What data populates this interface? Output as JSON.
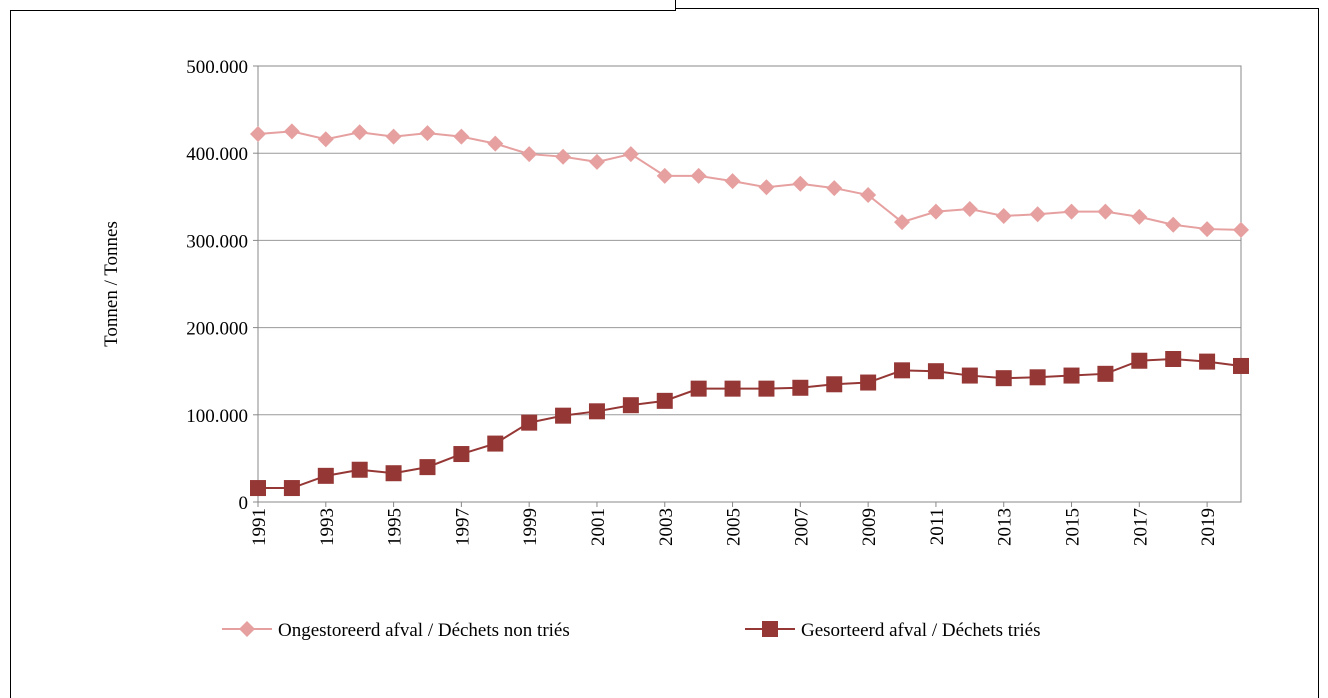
{
  "chart_data": {
    "type": "line",
    "y_label": "Tonnen / Tonnes",
    "x": [
      1991,
      1992,
      1993,
      1994,
      1995,
      1996,
      1997,
      1998,
      1999,
      2000,
      2001,
      2002,
      2003,
      2004,
      2005,
      2006,
      2007,
      2008,
      2009,
      2010,
      2011,
      2012,
      2013,
      2014,
      2015,
      2016,
      2017,
      2018,
      2019,
      2020
    ],
    "xlim": [
      1991,
      2020
    ],
    "xticks": [
      1991,
      1993,
      1995,
      1997,
      1999,
      2001,
      2003,
      2005,
      2007,
      2009,
      2011,
      2013,
      2015,
      2017,
      2019
    ],
    "ylim": [
      0,
      500000
    ],
    "yticks": [
      0,
      {
        "value": 100000,
        "label": "100.000"
      },
      {
        "value": 200000,
        "label": "200.000"
      },
      {
        "value": 300000,
        "label": "300.000"
      },
      {
        "value": 400000,
        "label": "400.000"
      },
      {
        "value": 500000,
        "label": "500.000"
      }
    ],
    "grid": true,
    "legend": "bottom",
    "series": [
      {
        "name": "Ongestoreerd afval / Déchets non triés",
        "color": "#e6a0a0",
        "marker": "diamond",
        "values": [
          422000,
          425000,
          416000,
          424000,
          419000,
          423000,
          419000,
          411000,
          399000,
          396000,
          390000,
          399000,
          374000,
          374000,
          368000,
          361000,
          365000,
          360000,
          352000,
          321000,
          333000,
          336000,
          328000,
          330000,
          333000,
          333000,
          327000,
          318000,
          313000,
          312000
        ]
      },
      {
        "name": "Gesorteerd afval / Déchets triés",
        "color": "#953735",
        "marker": "square",
        "values": [
          16000,
          16000,
          30000,
          37000,
          33000,
          40000,
          55000,
          67000,
          91000,
          99000,
          104000,
          111000,
          116000,
          130000,
          130000,
          130000,
          131000,
          135000,
          137000,
          151000,
          150000,
          145000,
          142000,
          143000,
          145000,
          147000,
          162000,
          164000,
          161000,
          156000
        ]
      }
    ]
  }
}
